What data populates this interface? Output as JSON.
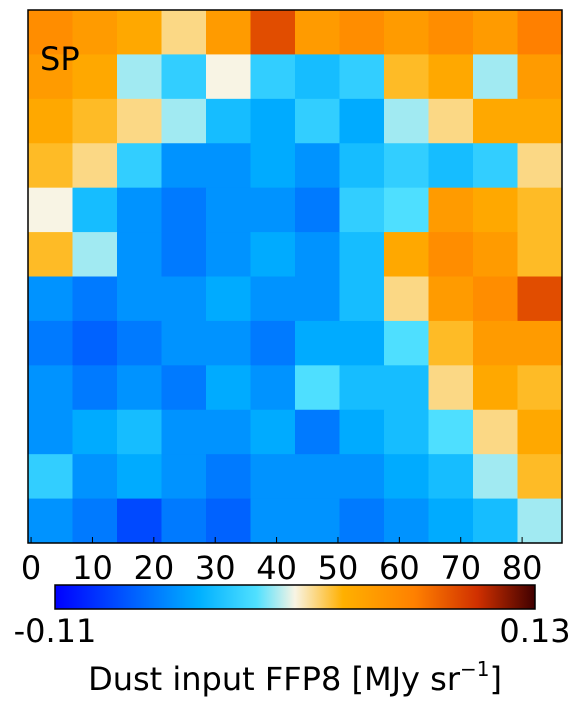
{
  "chart_data": {
    "type": "heatmap",
    "annotation": "SP",
    "xlim": [
      -0.5,
      86.5
    ],
    "ylim": [
      -0.5,
      86.5
    ],
    "xticks": [
      0,
      10,
      20,
      30,
      40,
      50,
      60,
      70,
      80
    ],
    "z": [
      [
        0.06,
        0.05,
        0.04,
        0.02,
        0.05,
        0.09,
        0.05,
        0.06,
        0.05,
        0.06,
        0.05,
        0.07
      ],
      [
        0.05,
        0.04,
        0.0,
        -0.02,
        0.01,
        -0.02,
        -0.03,
        -0.02,
        0.03,
        0.04,
        0.0,
        0.05
      ],
      [
        0.04,
        0.03,
        0.02,
        0.0,
        -0.03,
        -0.04,
        -0.02,
        -0.04,
        0.0,
        0.02,
        0.04,
        0.04
      ],
      [
        0.03,
        0.02,
        -0.02,
        -0.05,
        -0.05,
        -0.04,
        -0.05,
        -0.03,
        -0.02,
        -0.03,
        -0.02,
        0.02
      ],
      [
        0.01,
        -0.03,
        -0.05,
        -0.06,
        -0.05,
        -0.05,
        -0.06,
        -0.02,
        -0.01,
        0.05,
        0.04,
        0.03
      ],
      [
        0.03,
        0.0,
        -0.05,
        -0.06,
        -0.05,
        -0.04,
        -0.05,
        -0.03,
        0.04,
        0.06,
        0.05,
        0.03
      ],
      [
        -0.05,
        -0.06,
        -0.05,
        -0.05,
        -0.04,
        -0.05,
        -0.05,
        -0.03,
        0.02,
        0.05,
        0.06,
        0.09
      ],
      [
        -0.06,
        -0.07,
        -0.06,
        -0.05,
        -0.05,
        -0.06,
        -0.04,
        -0.04,
        -0.01,
        0.03,
        0.05,
        0.05
      ],
      [
        -0.05,
        -0.06,
        -0.05,
        -0.06,
        -0.04,
        -0.05,
        -0.01,
        -0.03,
        -0.03,
        0.02,
        0.04,
        0.03
      ],
      [
        -0.05,
        -0.04,
        -0.03,
        -0.05,
        -0.05,
        -0.04,
        -0.06,
        -0.04,
        -0.03,
        -0.01,
        0.02,
        0.04
      ],
      [
        -0.02,
        -0.05,
        -0.04,
        -0.05,
        -0.06,
        -0.05,
        -0.05,
        -0.05,
        -0.04,
        -0.03,
        0.0,
        0.03
      ],
      [
        -0.05,
        -0.06,
        -0.08,
        -0.06,
        -0.07,
        -0.05,
        -0.05,
        -0.06,
        -0.05,
        -0.04,
        -0.03,
        0.0
      ]
    ],
    "clim": [
      -0.11,
      0.13
    ],
    "cticks": [
      -0.11,
      0.13
    ],
    "colormap": [
      [
        0,
        "#0000ff"
      ],
      [
        0.3,
        "#00b0ff"
      ],
      [
        0.42,
        "#50e0ff"
      ],
      [
        0.5,
        "#f8f4e4"
      ],
      [
        0.6,
        "#ffb000"
      ],
      [
        0.75,
        "#ff8000"
      ],
      [
        0.88,
        "#d03000"
      ],
      [
        1,
        "#400000"
      ]
    ],
    "colorbar_label": {
      "text": "Dust input FFP8 [MJy sr",
      "sup": "−1",
      "end": "]"
    }
  }
}
